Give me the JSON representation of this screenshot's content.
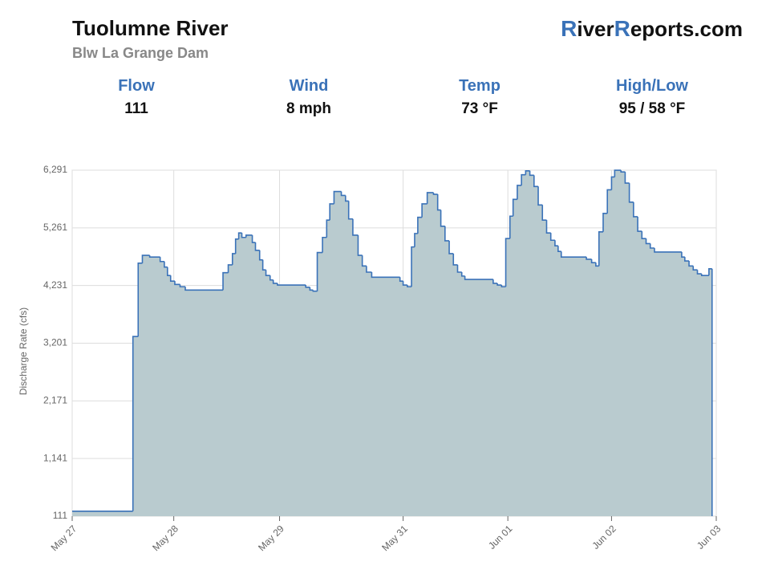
{
  "header": {
    "title": "Tuolumne River",
    "subtitle": "Blw La Grange Dam",
    "logo": [
      "R",
      "iver",
      "R",
      "eports.com"
    ]
  },
  "stats": [
    {
      "label": "Flow",
      "value": "111"
    },
    {
      "label": "Wind",
      "value": "8 mph"
    },
    {
      "label": "Temp",
      "value": "73 °F"
    },
    {
      "label": "High/Low",
      "value": "95 / 58 °F"
    }
  ],
  "chart_data": {
    "type": "step-area",
    "y_label": "Discharge Rate (cfs)",
    "color": "#3a72b8",
    "fill": "#b9cbcf",
    "grid": true,
    "ylim": [
      111,
      6291
    ],
    "yticks": [
      111,
      {
        "value": 1141,
        "label": "1,141"
      },
      {
        "value": 2171,
        "label": "2,171"
      },
      {
        "value": 3201,
        "label": "3,201"
      },
      {
        "value": 4231,
        "label": "4,231"
      },
      {
        "value": 5261,
        "label": "5,261"
      },
      {
        "value": 6291,
        "label": "6,291"
      }
    ],
    "xlim": [
      0,
      6.15
    ],
    "xticks": [
      {
        "value": 0,
        "label": "May 27"
      },
      {
        "value": 0.97,
        "label": "May 28"
      },
      {
        "value": 1.98,
        "label": "May 29"
      },
      {
        "value": 3.16,
        "label": "May 31"
      },
      {
        "value": 4.16,
        "label": "Jun 01"
      },
      {
        "value": 5.15,
        "label": "Jun 02"
      },
      {
        "value": 6.15,
        "label": "Jun 03"
      }
    ],
    "x": [
      0,
      0.58,
      0.63,
      0.67,
      0.74,
      0.84,
      0.88,
      0.91,
      0.94,
      0.98,
      1.03,
      1.08,
      1.44,
      1.49,
      1.53,
      1.56,
      1.59,
      1.62,
      1.66,
      1.72,
      1.75,
      1.79,
      1.82,
      1.85,
      1.89,
      1.92,
      1.96,
      2.23,
      2.27,
      2.3,
      2.34,
      2.39,
      2.43,
      2.46,
      2.5,
      2.57,
      2.61,
      2.64,
      2.68,
      2.73,
      2.77,
      2.81,
      2.86,
      3.13,
      3.16,
      3.2,
      3.24,
      3.27,
      3.3,
      3.34,
      3.39,
      3.45,
      3.49,
      3.52,
      3.56,
      3.6,
      3.64,
      3.68,
      3.72,
      3.75,
      4.02,
      4.06,
      4.1,
      4.14,
      4.18,
      4.21,
      4.25,
      4.29,
      4.33,
      4.37,
      4.41,
      4.45,
      4.49,
      4.53,
      4.57,
      4.61,
      4.64,
      4.67,
      4.91,
      4.96,
      5.0,
      5.03,
      5.07,
      5.11,
      5.15,
      5.18,
      5.24,
      5.28,
      5.32,
      5.36,
      5.4,
      5.44,
      5.48,
      5.52,
      5.56,
      5.82,
      5.85,
      5.89,
      5.93,
      5.97,
      6.01,
      6.08,
      6.11
    ],
    "values": [
      200,
      3320,
      4630,
      4770,
      4740,
      4660,
      4560,
      4410,
      4310,
      4250,
      4210,
      4150,
      4460,
      4600,
      4800,
      5060,
      5170,
      5090,
      5130,
      5000,
      4860,
      4690,
      4510,
      4410,
      4330,
      4270,
      4240,
      4200,
      4150,
      4130,
      4820,
      5090,
      5400,
      5690,
      5910,
      5840,
      5740,
      5420,
      5130,
      4770,
      4580,
      4470,
      4380,
      4310,
      4240,
      4210,
      4920,
      5160,
      5450,
      5690,
      5890,
      5860,
      5580,
      5290,
      5030,
      4800,
      4600,
      4470,
      4400,
      4340,
      4270,
      4240,
      4210,
      5070,
      5470,
      5770,
      6020,
      6210,
      6280,
      6200,
      6000,
      5670,
      5400,
      5170,
      5040,
      4940,
      4840,
      4740,
      4700,
      4640,
      4580,
      5190,
      5520,
      5940,
      6170,
      6290,
      6260,
      6060,
      5720,
      5460,
      5200,
      5070,
      4980,
      4900,
      4830,
      4740,
      4670,
      4580,
      4510,
      4440,
      4410,
      4530,
      111
    ]
  }
}
